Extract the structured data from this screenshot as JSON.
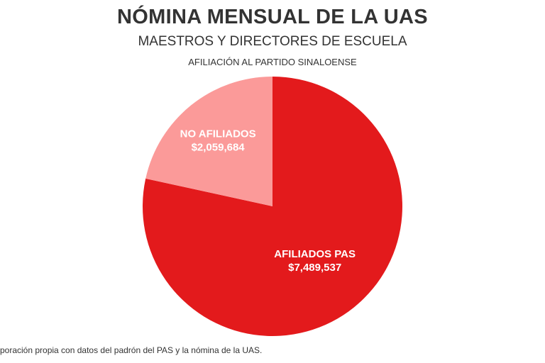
{
  "chart_data": {
    "type": "pie",
    "title": "NÓMINA MENSUAL DE LA UAS",
    "subtitle": "MAESTROS Y DIRECTORES DE ESCUELA",
    "subsubtitle": "AFILIACIÓN AL PARTIDO SINALOENSE",
    "slices": [
      {
        "label": "AFILIADOS PAS",
        "value": 7489537,
        "value_label": "$7,489,537",
        "color": "#e31a1c"
      },
      {
        "label": "NO AFILIADOS",
        "value": 2059684,
        "value_label": "$2,059,684",
        "color": "#fb9a99"
      }
    ],
    "start_angle": "top, clockwise"
  },
  "footnote": "poración propia con datos del padrón del PAS y la nómina de la UAS."
}
